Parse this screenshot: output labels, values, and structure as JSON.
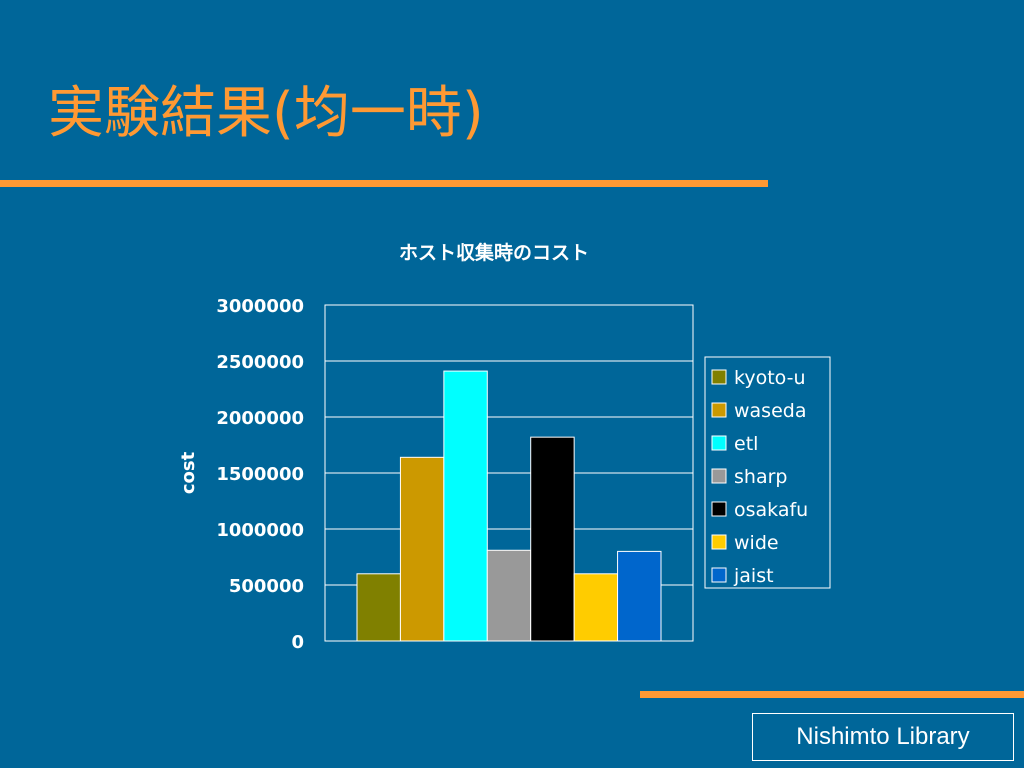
{
  "slide": {
    "title": "実験結果(均一時)",
    "footer": "Nishimto Library"
  },
  "colors": {
    "background": "#006699",
    "accent": "#ff9933"
  },
  "chart_data": {
    "type": "bar",
    "title": "ホスト収集時のコスト",
    "xlabel": "",
    "ylabel": "cost",
    "ylim": [
      0,
      3000000
    ],
    "yticks": [
      0,
      500000,
      1000000,
      1500000,
      2000000,
      2500000,
      3000000
    ],
    "grid": true,
    "legend_position": "right",
    "series": [
      {
        "name": "kyoto-u",
        "value": 600000,
        "color": "#808000"
      },
      {
        "name": "waseda",
        "value": 1640000,
        "color": "#cc9900"
      },
      {
        "name": "etl",
        "value": 2410000,
        "color": "#00ffff"
      },
      {
        "name": "sharp",
        "value": 810000,
        "color": "#999999"
      },
      {
        "name": "osakafu",
        "value": 1820000,
        "color": "#000000"
      },
      {
        "name": "wide",
        "value": 600000,
        "color": "#ffcc00"
      },
      {
        "name": "jaist",
        "value": 800000,
        "color": "#0066cc"
      }
    ]
  }
}
